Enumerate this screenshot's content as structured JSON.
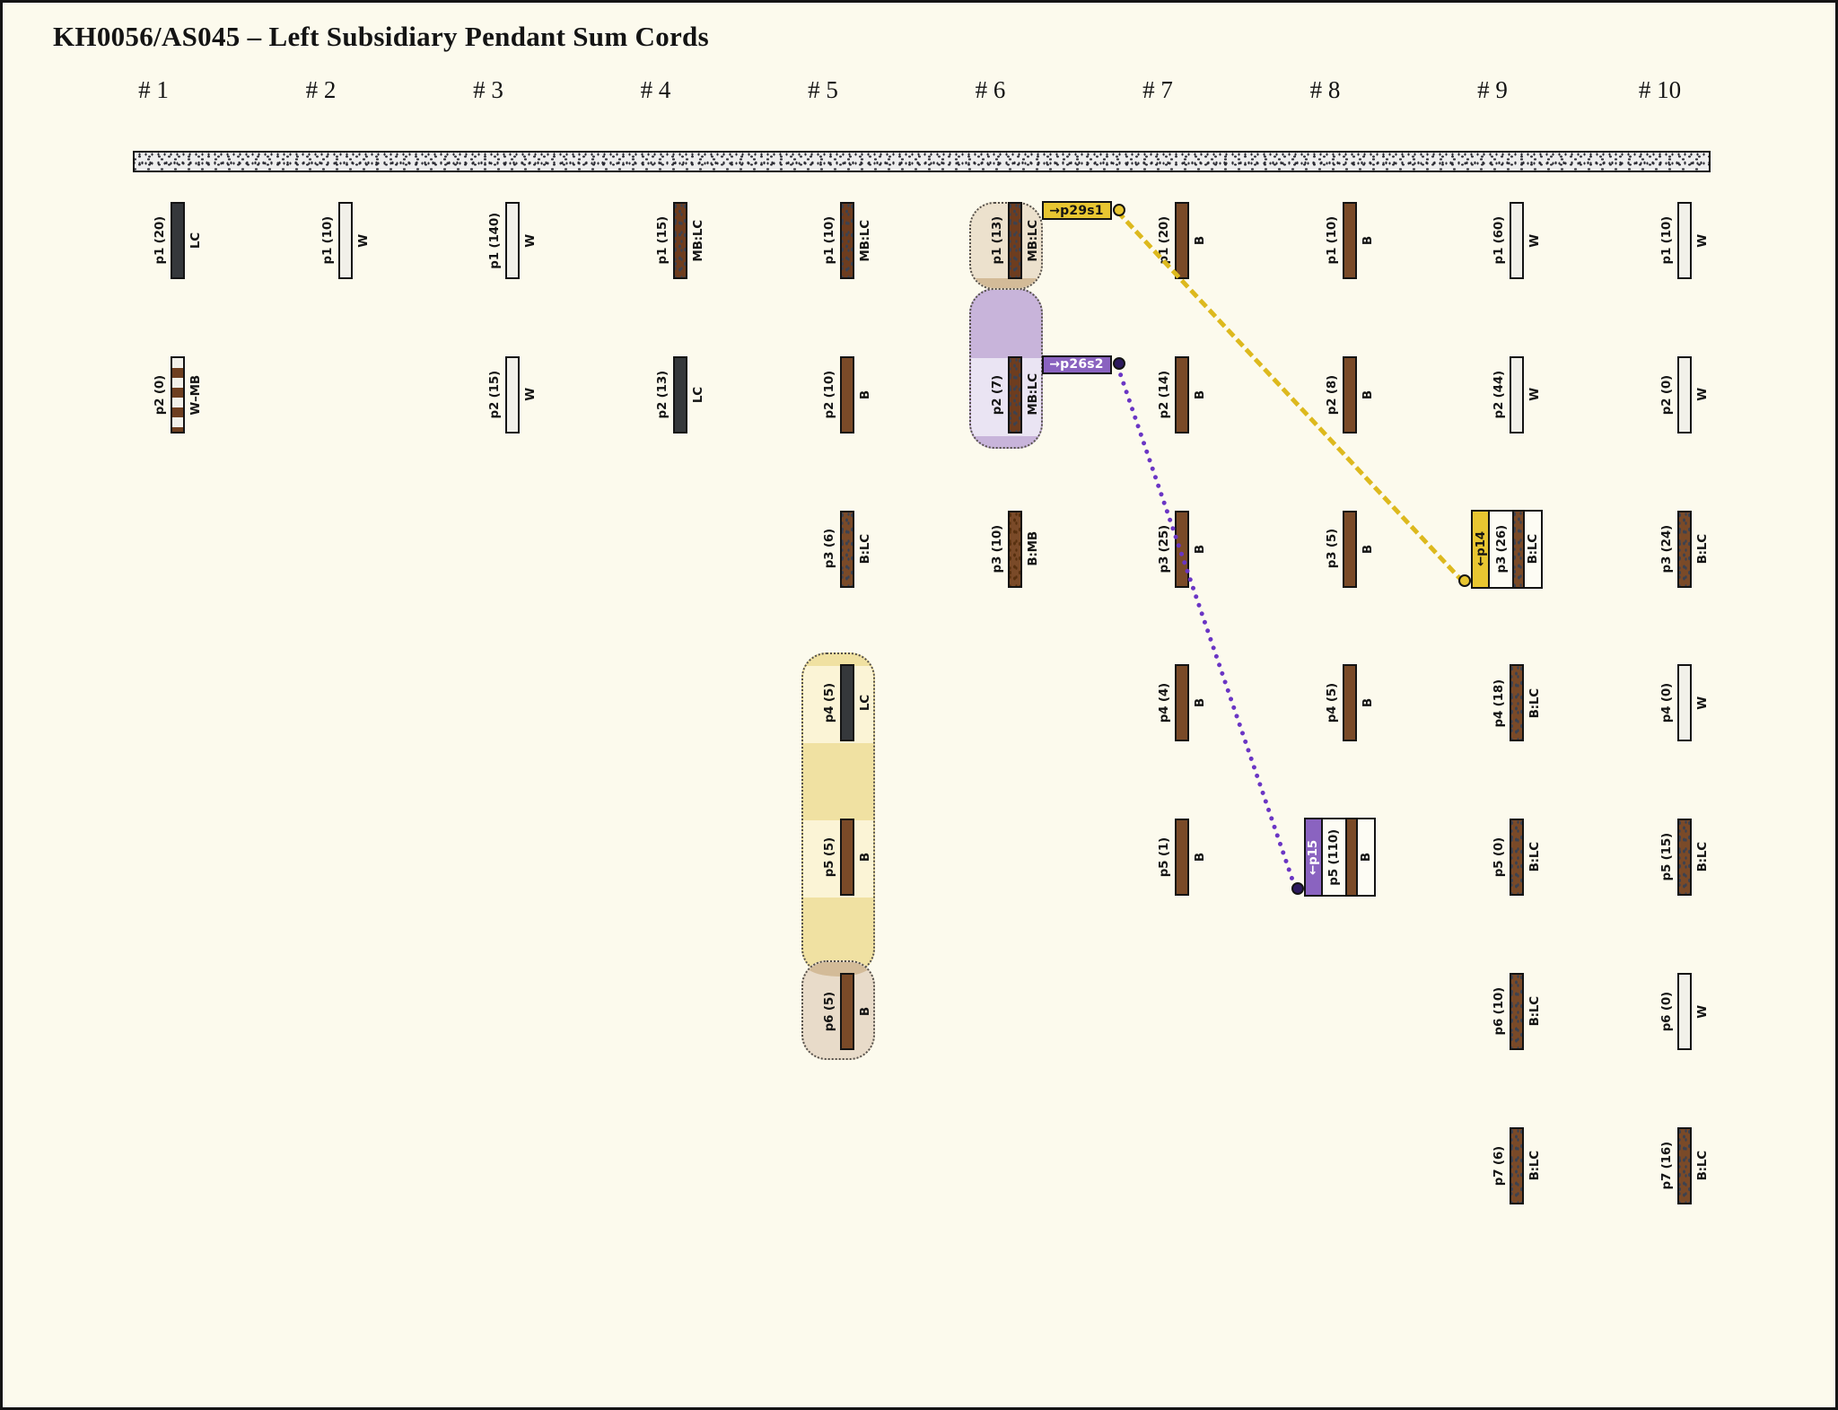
{
  "title": "KH0056/AS045 – Left Subsidiary Pendant Sum Cords",
  "palette": {
    "background": "#fcfaed",
    "ink": "#141414",
    "cord_fill": "#ededed",
    "cord_speckle": "#2c2c34",
    "brown": "#7a4a28",
    "brown_dark": "#6e3d1f",
    "dark_gray": "#35383b",
    "white_cord": "#f1f0e9",
    "speckle_slate": "#3c4250",
    "speckle_brown": "#57300f",
    "stripe_white": "#f2f1ea",
    "stripe_brown": "#6e3f20",
    "compound_white": "#fdfcf4",
    "highlight_yellow": "#f0e1a2",
    "highlight_yellow_light": "#fbf4d6",
    "highlight_beige": "#ece1cd",
    "highlight_beige2": "#e8dbc9",
    "highlight_tan": "#d3bb98",
    "highlight_lavender": "#c8b4da",
    "highlight_lavender_light": "#eae4f3",
    "connector_yellow": "#ddb91e",
    "connector_purple": "#6a35c4",
    "tag_yellow": "#e8c631",
    "tag_purple": "#8a63c0",
    "dot_dark_purple": "#2d1a5e"
  },
  "columns": [
    {
      "header": "# 1",
      "pendants": [
        {
          "row": 1,
          "label": "p1 (20)",
          "code": "LC",
          "color": "LC"
        },
        {
          "row": 2,
          "label": "p2 (0)",
          "code": "W–MB",
          "color": "W-MB"
        }
      ]
    },
    {
      "header": "# 2",
      "pendants": [
        {
          "row": 1,
          "label": "p1 (10)",
          "code": "W",
          "color": "W"
        }
      ]
    },
    {
      "header": "# 3",
      "pendants": [
        {
          "row": 1,
          "label": "p1 (140)",
          "code": "W",
          "color": "W"
        },
        {
          "row": 2,
          "label": "p2 (15)",
          "code": "W",
          "color": "W"
        }
      ]
    },
    {
      "header": "# 4",
      "pendants": [
        {
          "row": 1,
          "label": "p1 (15)",
          "code": "MB:LC",
          "color": "MB:LC"
        },
        {
          "row": 2,
          "label": "p2 (13)",
          "code": "LC",
          "color": "LC"
        }
      ]
    },
    {
      "header": "# 5",
      "pendants": [
        {
          "row": 1,
          "label": "p1 (10)",
          "code": "MB:LC",
          "color": "MB:LC"
        },
        {
          "row": 2,
          "label": "p2 (10)",
          "code": "B",
          "color": "B"
        },
        {
          "row": 3,
          "label": "p3 (6)",
          "code": "B:LC",
          "color": "B:LC"
        },
        {
          "row": 4,
          "label": "p4 (5)",
          "code": "LC",
          "color": "LC"
        },
        {
          "row": 5,
          "label": "p5 (5)",
          "code": "B",
          "color": "B"
        },
        {
          "row": 6,
          "label": "p6 (5)",
          "code": "B",
          "color": "B"
        }
      ]
    },
    {
      "header": "# 6",
      "pendants": [
        {
          "row": 1,
          "label": "p1 (13)",
          "code": "MB:LC",
          "color": "MB:LC"
        },
        {
          "row": 2,
          "label": "p2 (7)",
          "code": "MB:LC",
          "color": "MB:LC"
        },
        {
          "row": 3,
          "label": "p3 (10)",
          "code": "B:MB",
          "color": "B:MB"
        }
      ]
    },
    {
      "header": "# 7",
      "pendants": [
        {
          "row": 1,
          "label": "p1 (20)",
          "code": "B",
          "color": "B"
        },
        {
          "row": 2,
          "label": "p2 (14)",
          "code": "B",
          "color": "B"
        },
        {
          "row": 3,
          "label": "p3 (25)",
          "code": "B",
          "color": "B"
        },
        {
          "row": 4,
          "label": "p4 (4)",
          "code": "B",
          "color": "B"
        },
        {
          "row": 5,
          "label": "p5 (1)",
          "code": "B",
          "color": "B"
        }
      ]
    },
    {
      "header": "# 8",
      "pendants": [
        {
          "row": 1,
          "label": "p1 (10)",
          "code": "B",
          "color": "B"
        },
        {
          "row": 2,
          "label": "p2 (8)",
          "code": "B",
          "color": "B"
        },
        {
          "row": 3,
          "label": "p3 (5)",
          "code": "B",
          "color": "B"
        },
        {
          "row": 4,
          "label": "p4 (5)",
          "code": "B",
          "color": "B"
        },
        {
          "row": 5,
          "label": "p5 (110)",
          "code": "B",
          "color": "B",
          "tag": "←p15",
          "tag_color": "purple"
        }
      ]
    },
    {
      "header": "# 9",
      "pendants": [
        {
          "row": 1,
          "label": "p1 (60)",
          "code": "W",
          "color": "W"
        },
        {
          "row": 2,
          "label": "p2 (44)",
          "code": "W",
          "color": "W"
        },
        {
          "row": 3,
          "label": "p3 (26)",
          "code": "B:LC",
          "color": "B:LC",
          "tag": "←p14",
          "tag_color": "yellow"
        },
        {
          "row": 4,
          "label": "p4 (18)",
          "code": "B:LC",
          "color": "B:LC"
        },
        {
          "row": 5,
          "label": "p5 (0)",
          "code": "B:LC",
          "color": "B:LC"
        },
        {
          "row": 6,
          "label": "p6 (10)",
          "code": "B:LC",
          "color": "B:LC"
        },
        {
          "row": 7,
          "label": "p7 (6)",
          "code": "B:LC",
          "color": "B:LC"
        }
      ]
    },
    {
      "header": "# 10",
      "pendants": [
        {
          "row": 1,
          "label": "p1 (10)",
          "code": "W",
          "color": "W"
        },
        {
          "row": 2,
          "label": "p2 (0)",
          "code": "W",
          "color": "W"
        },
        {
          "row": 3,
          "label": "p3 (24)",
          "code": "B:LC",
          "color": "B:LC"
        },
        {
          "row": 4,
          "label": "p4 (0)",
          "code": "W",
          "color": "W"
        },
        {
          "row": 5,
          "label": "p5 (15)",
          "code": "B:LC",
          "color": "B:LC"
        },
        {
          "row": 6,
          "label": "p6 (0)",
          "code": "W",
          "color": "W"
        },
        {
          "row": 7,
          "label": "p7 (16)",
          "code": "B:LC",
          "color": "B:LC"
        }
      ]
    }
  ],
  "highlights": [
    {
      "column": 6,
      "rows": [
        1
      ],
      "style": "beige"
    },
    {
      "column": 6,
      "rows": [
        2
      ],
      "style": "lavender"
    },
    {
      "column": 5,
      "rows": [
        4,
        5
      ],
      "style": "yellow"
    },
    {
      "column": 5,
      "rows": [
        6
      ],
      "style": "beige"
    }
  ],
  "connectors": [
    {
      "label": "→p29s1",
      "color": "yellow",
      "from_column": 6,
      "from_row": 1,
      "to_column": 9,
      "to_row": 3,
      "target_tag": "←p14"
    },
    {
      "label": "→p26s2",
      "color": "purple",
      "from_column": 6,
      "from_row": 2,
      "to_column": 8,
      "to_row": 5,
      "target_tag": "←p15"
    }
  ]
}
